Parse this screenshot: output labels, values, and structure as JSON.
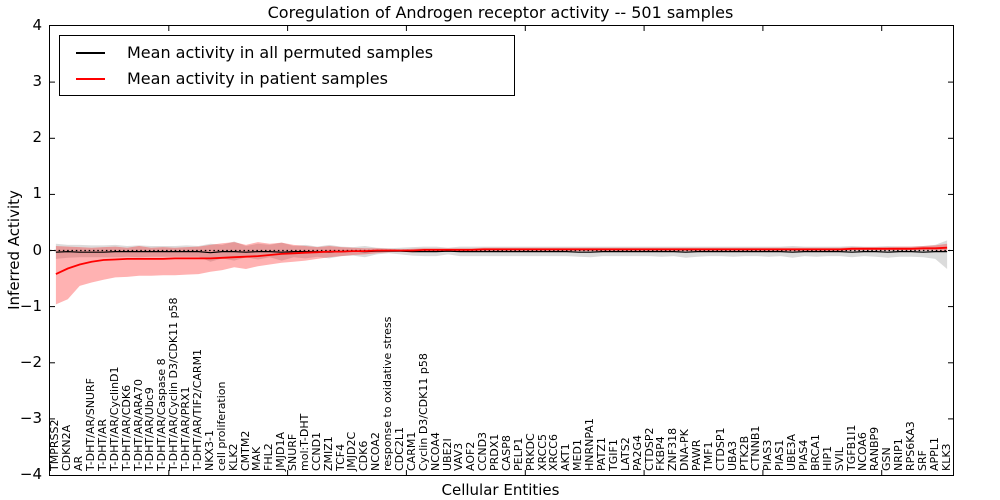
{
  "title": "Coregulation of Androgen receptor activity -- 501 samples",
  "axes": {
    "ylabel": "Inferred Activity",
    "xlabel": "Cellular Entities",
    "y_ticks": [
      4,
      3,
      2,
      1,
      0,
      -1,
      -2,
      -3,
      -4
    ],
    "x_major_tick_step": 10
  },
  "legend": {
    "items": [
      {
        "name": "permuted",
        "label": "Mean activity in all permuted samples",
        "color": "#000000"
      },
      {
        "name": "patient",
        "label": "Mean activity in patient samples",
        "color": "#ff0000"
      }
    ],
    "position": "upper left"
  },
  "colors": {
    "permuted_line": "#000000",
    "patient_line": "#ff0000",
    "permuted_band": "rgba(110,110,110,0.25)",
    "patient_band": "rgba(255,0,0,0.30)",
    "zero_line": "#000000",
    "background": "#ffffff"
  },
  "chart_data": {
    "type": "line",
    "title": "Coregulation of Androgen receptor activity -- 501 samples",
    "xlabel": "Cellular Entities",
    "ylabel": "Inferred Activity",
    "ylim": [
      -4,
      4
    ],
    "grid": false,
    "legend_position": "upper left",
    "zero_line_dotted": true,
    "categories": [
      "TMPRSS2",
      "CDKN2A",
      "AR",
      "T-DHT/AR/SNURF",
      "T-DHT/AR",
      "T-DHT/AR/CyclinD1",
      "T-DHT/AR/CDK6",
      "T-DHT/AR/ARA70",
      "T-DHT/AR/Ubc9",
      "T-DHT/AR/Caspase 8",
      "T-DHT/AR/Cyclin D3/CDK11 p58",
      "T-DHT/AR/PRX1",
      "T-DHT/AR/TIF2/CARM1",
      "NKX3-1",
      "cell proliferation",
      "KLK2",
      "CMTM2",
      "MAK",
      "FHL2",
      "JMJD1A",
      "SNURF",
      "mol:T-DHT",
      "CCND1",
      "ZMIZ1",
      "TCF4",
      "JMJD2C",
      "CDK6",
      "NCOA2",
      "response to oxidative stress",
      "CDC2L1",
      "CARM1",
      "Cyclin D3/CDK11 p58",
      "NCOA4",
      "UBE2I",
      "VAV3",
      "AOF2",
      "CCND3",
      "PRDX1",
      "CASP8",
      "PELP1",
      "PRKDC",
      "XRCC5",
      "XRCC6",
      "AKT1",
      "MED1",
      "HNRNPA1",
      "PATZ1",
      "TGIF1",
      "LATS2",
      "PA2G4",
      "CTDSP2",
      "FKBP4",
      "ZNF318",
      "DNA-PK",
      "PAWR",
      "TMF1",
      "CTDSP1",
      "UBA3",
      "PTK2B",
      "CTNNB1",
      "PIAS3",
      "PIAS1",
      "UBE3A",
      "PIAS4",
      "BRCA1",
      "HIP1",
      "SVIL",
      "TGFB1I1",
      "NCOA6",
      "RANBP9",
      "GSN",
      "NRIP1",
      "RPS6KA3",
      "SRF",
      "APPL1",
      "KLK3"
    ],
    "series": [
      {
        "name": "Mean activity in all permuted samples",
        "color": "#000000",
        "stroke_width": 1.2,
        "values": [
          -0.03,
          -0.02,
          -0.03,
          -0.03,
          -0.03,
          -0.02,
          -0.02,
          -0.02,
          -0.02,
          -0.02,
          -0.02,
          -0.02,
          -0.02,
          -0.04,
          -0.02,
          -0.02,
          -0.03,
          -0.02,
          -0.02,
          -0.03,
          -0.02,
          -0.02,
          -0.02,
          -0.03,
          -0.02,
          -0.01,
          -0.02,
          -0.01,
          -0.01,
          -0.01,
          -0.02,
          -0.02,
          -0.02,
          -0.01,
          -0.02,
          -0.02,
          -0.02,
          -0.02,
          -0.02,
          -0.02,
          -0.02,
          -0.02,
          -0.02,
          -0.02,
          -0.03,
          -0.03,
          -0.02,
          -0.02,
          -0.02,
          -0.02,
          -0.02,
          -0.02,
          -0.02,
          -0.03,
          -0.02,
          -0.02,
          -0.02,
          -0.02,
          -0.02,
          -0.02,
          -0.02,
          -0.02,
          -0.03,
          -0.02,
          -0.02,
          -0.02,
          -0.02,
          -0.03,
          -0.02,
          -0.02,
          -0.03,
          -0.02,
          -0.02,
          -0.03,
          -0.02,
          -0.02
        ]
      },
      {
        "name": "Mean activity in patient samples",
        "color": "#ff0000",
        "stroke_width": 1.8,
        "values": [
          -0.42,
          -0.32,
          -0.25,
          -0.2,
          -0.17,
          -0.16,
          -0.15,
          -0.15,
          -0.15,
          -0.15,
          -0.14,
          -0.14,
          -0.14,
          -0.14,
          -0.13,
          -0.12,
          -0.11,
          -0.1,
          -0.08,
          -0.06,
          -0.05,
          -0.04,
          -0.03,
          -0.02,
          -0.02,
          -0.01,
          -0.01,
          0.0,
          0.0,
          0.0,
          0.0,
          0.01,
          0.01,
          0.01,
          0.01,
          0.01,
          0.02,
          0.02,
          0.02,
          0.02,
          0.02,
          0.02,
          0.02,
          0.02,
          0.02,
          0.02,
          0.02,
          0.02,
          0.02,
          0.02,
          0.02,
          0.02,
          0.02,
          0.02,
          0.02,
          0.02,
          0.02,
          0.02,
          0.02,
          0.02,
          0.02,
          0.02,
          0.02,
          0.02,
          0.02,
          0.02,
          0.02,
          0.03,
          0.03,
          0.03,
          0.03,
          0.03,
          0.03,
          0.04,
          0.04,
          0.05
        ]
      }
    ],
    "bands": [
      {
        "name": "permuted-range",
        "color": "rgba(110,110,110,0.25)",
        "upper": [
          0.12,
          0.1,
          0.1,
          0.09,
          0.09,
          0.1,
          0.08,
          0.09,
          0.08,
          0.08,
          0.08,
          0.09,
          0.08,
          0.12,
          0.1,
          0.16,
          0.08,
          0.12,
          0.1,
          0.14,
          0.08,
          0.1,
          0.07,
          0.1,
          0.07,
          0.06,
          0.08,
          0.05,
          0.04,
          0.05,
          0.06,
          0.07,
          0.07,
          0.05,
          0.07,
          0.07,
          0.07,
          0.07,
          0.07,
          0.07,
          0.07,
          0.07,
          0.07,
          0.07,
          0.07,
          0.07,
          0.07,
          0.07,
          0.07,
          0.07,
          0.07,
          0.07,
          0.07,
          0.07,
          0.07,
          0.07,
          0.07,
          0.07,
          0.07,
          0.07,
          0.07,
          0.07,
          0.08,
          0.07,
          0.07,
          0.07,
          0.07,
          0.08,
          0.07,
          0.07,
          0.08,
          0.07,
          0.07,
          0.08,
          0.1,
          0.18
        ],
        "lower": [
          -0.15,
          -0.13,
          -0.12,
          -0.12,
          -0.12,
          -0.12,
          -0.11,
          -0.12,
          -0.11,
          -0.11,
          -0.11,
          -0.11,
          -0.11,
          -0.2,
          -0.14,
          -0.18,
          -0.12,
          -0.16,
          -0.12,
          -0.18,
          -0.12,
          -0.14,
          -0.11,
          -0.14,
          -0.1,
          -0.09,
          -0.12,
          -0.07,
          -0.05,
          -0.07,
          -0.09,
          -0.1,
          -0.1,
          -0.07,
          -0.1,
          -0.1,
          -0.1,
          -0.1,
          -0.1,
          -0.1,
          -0.1,
          -0.1,
          -0.1,
          -0.1,
          -0.11,
          -0.12,
          -0.1,
          -0.1,
          -0.1,
          -0.1,
          -0.1,
          -0.11,
          -0.1,
          -0.13,
          -0.11,
          -0.1,
          -0.1,
          -0.11,
          -0.1,
          -0.1,
          -0.11,
          -0.1,
          -0.13,
          -0.1,
          -0.11,
          -0.1,
          -0.1,
          -0.12,
          -0.1,
          -0.11,
          -0.13,
          -0.11,
          -0.11,
          -0.12,
          -0.15,
          -0.33
        ]
      },
      {
        "name": "patient-range",
        "color": "rgba(255,0,0,0.30)",
        "upper": [
          0.08,
          0.07,
          0.06,
          0.05,
          0.06,
          0.07,
          0.05,
          0.08,
          0.05,
          0.06,
          0.05,
          0.06,
          0.07,
          0.1,
          0.13,
          0.15,
          0.1,
          0.15,
          0.12,
          0.14,
          0.1,
          0.08,
          0.06,
          0.08,
          0.06,
          0.05,
          0.04,
          0.04,
          0.03,
          0.02,
          0.03,
          0.04,
          0.04,
          0.04,
          0.04,
          0.04,
          0.05,
          0.05,
          0.05,
          0.05,
          0.05,
          0.05,
          0.05,
          0.05,
          0.05,
          0.05,
          0.05,
          0.05,
          0.05,
          0.05,
          0.05,
          0.05,
          0.05,
          0.05,
          0.05,
          0.05,
          0.05,
          0.05,
          0.05,
          0.05,
          0.05,
          0.05,
          0.05,
          0.05,
          0.05,
          0.05,
          0.05,
          0.06,
          0.06,
          0.06,
          0.06,
          0.07,
          0.07,
          0.08,
          0.09,
          0.12
        ],
        "lower": [
          -0.96,
          -0.87,
          -0.63,
          -0.57,
          -0.52,
          -0.48,
          -0.47,
          -0.45,
          -0.45,
          -0.44,
          -0.44,
          -0.43,
          -0.42,
          -0.38,
          -0.35,
          -0.3,
          -0.33,
          -0.28,
          -0.25,
          -0.22,
          -0.2,
          -0.18,
          -0.15,
          -0.12,
          -0.1,
          -0.08,
          -0.07,
          -0.05,
          -0.03,
          -0.02,
          -0.03,
          -0.02,
          -0.02,
          -0.02,
          -0.02,
          -0.02,
          -0.02,
          -0.02,
          -0.02,
          -0.02,
          -0.01,
          -0.01,
          -0.01,
          -0.01,
          -0.01,
          -0.01,
          -0.01,
          -0.01,
          -0.01,
          -0.01,
          -0.01,
          -0.01,
          -0.01,
          -0.01,
          -0.01,
          -0.01,
          -0.01,
          -0.01,
          -0.01,
          -0.01,
          -0.01,
          -0.01,
          -0.01,
          -0.01,
          -0.01,
          -0.01,
          -0.01,
          0.0,
          0.0,
          0.0,
          0.0,
          0.0,
          0.0,
          0.0,
          0.0,
          -0.01
        ]
      }
    ]
  }
}
